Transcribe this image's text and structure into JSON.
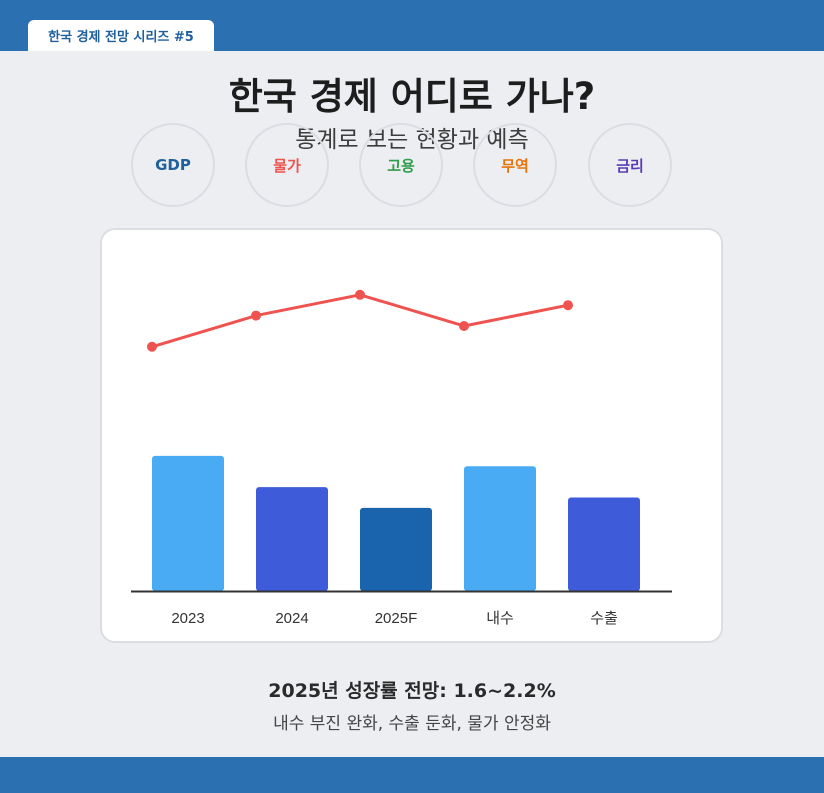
{
  "header": {
    "series_tag": "한국 경제 전망 시리즈 #5",
    "bar_color": "#2b70b1"
  },
  "title": "한국 경제 어디로 가나?",
  "subtitle": "통계로 보는 현황과 예측",
  "topics": [
    {
      "label": "GDP",
      "color": "#1f5f9c"
    },
    {
      "label": "물가",
      "color": "#ef5350"
    },
    {
      "label": "고용",
      "color": "#2e9e4a"
    },
    {
      "label": "무역",
      "color": "#e8740c"
    },
    {
      "label": "금리",
      "color": "#5b3bb5"
    }
  ],
  "chart_data": {
    "type": "bar",
    "categories": [
      "2023",
      "2024",
      "2025F",
      "내수",
      "수출"
    ],
    "values": [
      13,
      10,
      8,
      12,
      9
    ],
    "ylim": [
      0,
      28
    ],
    "bar_colors": [
      "#4aabf5",
      "#3e5bd9",
      "#1a63ad",
      "#4aabf5",
      "#3e5bd9"
    ],
    "line": {
      "values": [
        23.5,
        26.5,
        28.5,
        25.5,
        27.5
      ],
      "color": "#ef5350"
    },
    "grid": false,
    "legend": "none",
    "axis_color": "#333333"
  },
  "summary": {
    "title": "2025년 성장률 전망: 1.6~2.2%",
    "description": "내수 부진 완화, 수출 둔화, 물가 안정화"
  }
}
